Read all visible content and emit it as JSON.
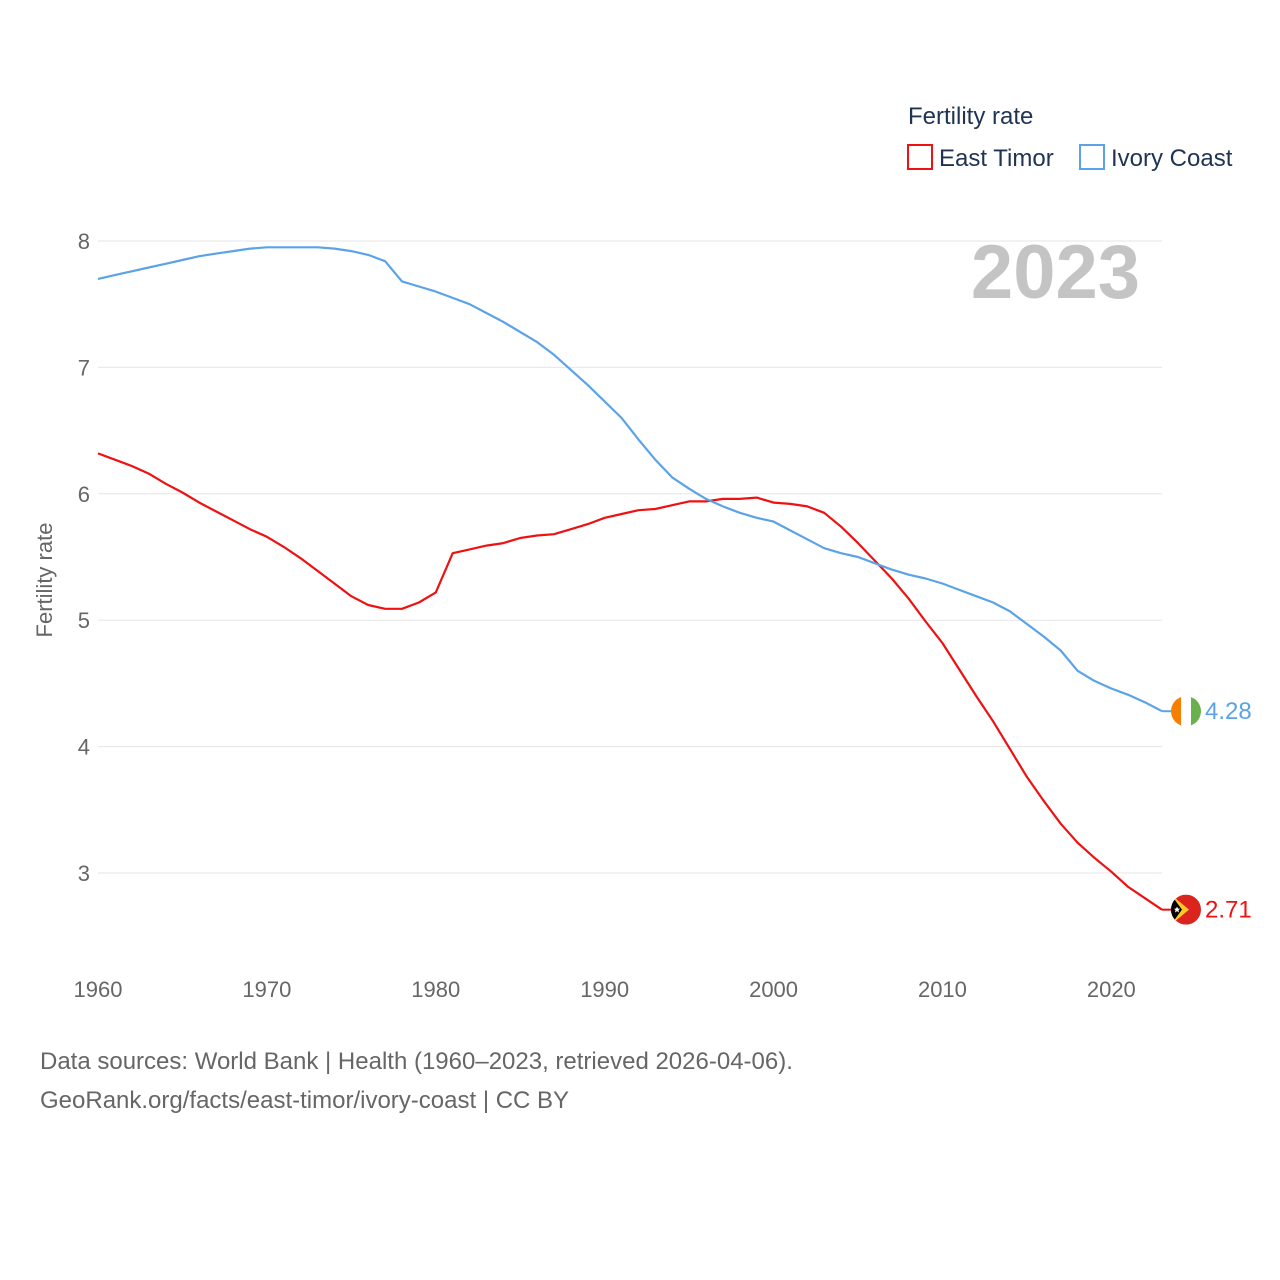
{
  "chart_data": {
    "type": "line",
    "title": "",
    "year_label": "2023",
    "legend_title": "Fertility rate",
    "ylabel": "Fertility rate",
    "xlabel": "",
    "xlim": [
      1960,
      2023
    ],
    "ylim": [
      2.45,
      8.2
    ],
    "x_ticks": [
      "1960",
      "1970",
      "1980",
      "1990",
      "2000",
      "2010",
      "2020"
    ],
    "y_ticks": [
      "3",
      "4",
      "5",
      "6",
      "7",
      "8"
    ],
    "x": [
      1960,
      1961,
      1962,
      1963,
      1964,
      1965,
      1966,
      1967,
      1968,
      1969,
      1970,
      1971,
      1972,
      1973,
      1974,
      1975,
      1976,
      1977,
      1978,
      1979,
      1980,
      1981,
      1982,
      1983,
      1984,
      1985,
      1986,
      1987,
      1988,
      1989,
      1990,
      1991,
      1992,
      1993,
      1994,
      1995,
      1996,
      1997,
      1998,
      1999,
      2000,
      2001,
      2002,
      2003,
      2004,
      2005,
      2006,
      2007,
      2008,
      2009,
      2010,
      2011,
      2012,
      2013,
      2014,
      2015,
      2016,
      2017,
      2018,
      2019,
      2020,
      2021,
      2022,
      2023
    ],
    "series": [
      {
        "name": "East Timor",
        "color": "#ee1111",
        "end_value": "2.71",
        "flag": "east-timor-flag-icon",
        "values": [
          6.32,
          6.27,
          6.22,
          6.16,
          6.08,
          6.01,
          5.93,
          5.86,
          5.79,
          5.72,
          5.66,
          5.58,
          5.49,
          5.39,
          5.29,
          5.19,
          5.12,
          5.09,
          5.09,
          5.14,
          5.22,
          5.53,
          5.56,
          5.59,
          5.61,
          5.65,
          5.67,
          5.68,
          5.72,
          5.76,
          5.81,
          5.84,
          5.87,
          5.88,
          5.91,
          5.94,
          5.94,
          5.96,
          5.96,
          5.97,
          5.93,
          5.92,
          5.9,
          5.85,
          5.74,
          5.61,
          5.47,
          5.33,
          5.17,
          4.99,
          4.82,
          4.61,
          4.4,
          4.2,
          3.98,
          3.76,
          3.57,
          3.39,
          3.24,
          3.12,
          3.01,
          2.89,
          2.8,
          2.71
        ]
      },
      {
        "name": "Ivory Coast",
        "color": "#5ba3e6",
        "end_value": "4.28",
        "flag": "ivory-coast-flag-icon",
        "values": [
          7.7,
          7.73,
          7.76,
          7.79,
          7.82,
          7.85,
          7.88,
          7.9,
          7.92,
          7.94,
          7.95,
          7.95,
          7.95,
          7.95,
          7.94,
          7.92,
          7.89,
          7.84,
          7.68,
          7.64,
          7.6,
          7.55,
          7.5,
          7.43,
          7.36,
          7.28,
          7.2,
          7.1,
          6.98,
          6.86,
          6.73,
          6.6,
          6.43,
          6.27,
          6.13,
          6.04,
          5.96,
          5.9,
          5.85,
          5.81,
          5.78,
          5.71,
          5.64,
          5.57,
          5.53,
          5.5,
          5.45,
          5.4,
          5.36,
          5.33,
          5.29,
          5.24,
          5.19,
          5.14,
          5.07,
          4.97,
          4.87,
          4.76,
          4.6,
          4.52,
          4.46,
          4.41,
          4.35,
          4.28
        ]
      }
    ]
  },
  "footer": {
    "line1": "Data sources: World Bank | Health (1960–2023, retrieved 2026-04-06).",
    "line2": "GeoRank.org/facts/east-timor/ivory-coast | CC BY"
  }
}
